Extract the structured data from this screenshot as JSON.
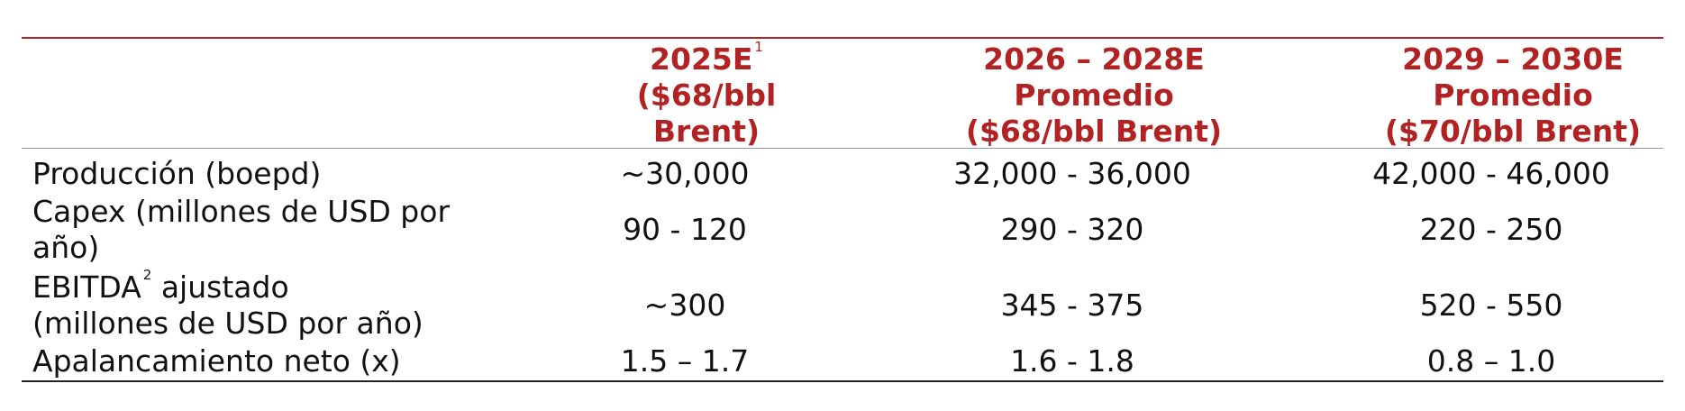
{
  "table": {
    "columns": [
      {
        "line1": "2025E",
        "sup": "1",
        "line2": "($68/bbl",
        "line3": "Brent)"
      },
      {
        "line1": "2026 – 2028E",
        "line2": "Promedio",
        "line3": "($68/bbl Brent)"
      },
      {
        "line1": "2029 – 2030E",
        "line2": "Promedio",
        "line3": "($70/bbl Brent)"
      }
    ],
    "rows": [
      {
        "label_line1": "Producción (boepd)",
        "values": [
          "~30,000",
          "32,000 - 36,000",
          "42,000 - 46,000"
        ]
      },
      {
        "label_line1": "Capex (millones de USD por",
        "label_line2": "año)",
        "values": [
          "90 - 120",
          "290 - 320",
          "220 - 250"
        ]
      },
      {
        "label_line1": "EBITDA",
        "label_sup": "2",
        "label_line1_rest": " ajustado",
        "label_line2": "(millones de USD por año)",
        "values": [
          "~300",
          "345 - 375",
          "520 - 550"
        ]
      },
      {
        "label_line1": "Apalancamiento neto (x)",
        "values": [
          "1.5 – 1.7",
          "1.6 - 1.8",
          "0.8 – 1.0"
        ]
      }
    ]
  }
}
